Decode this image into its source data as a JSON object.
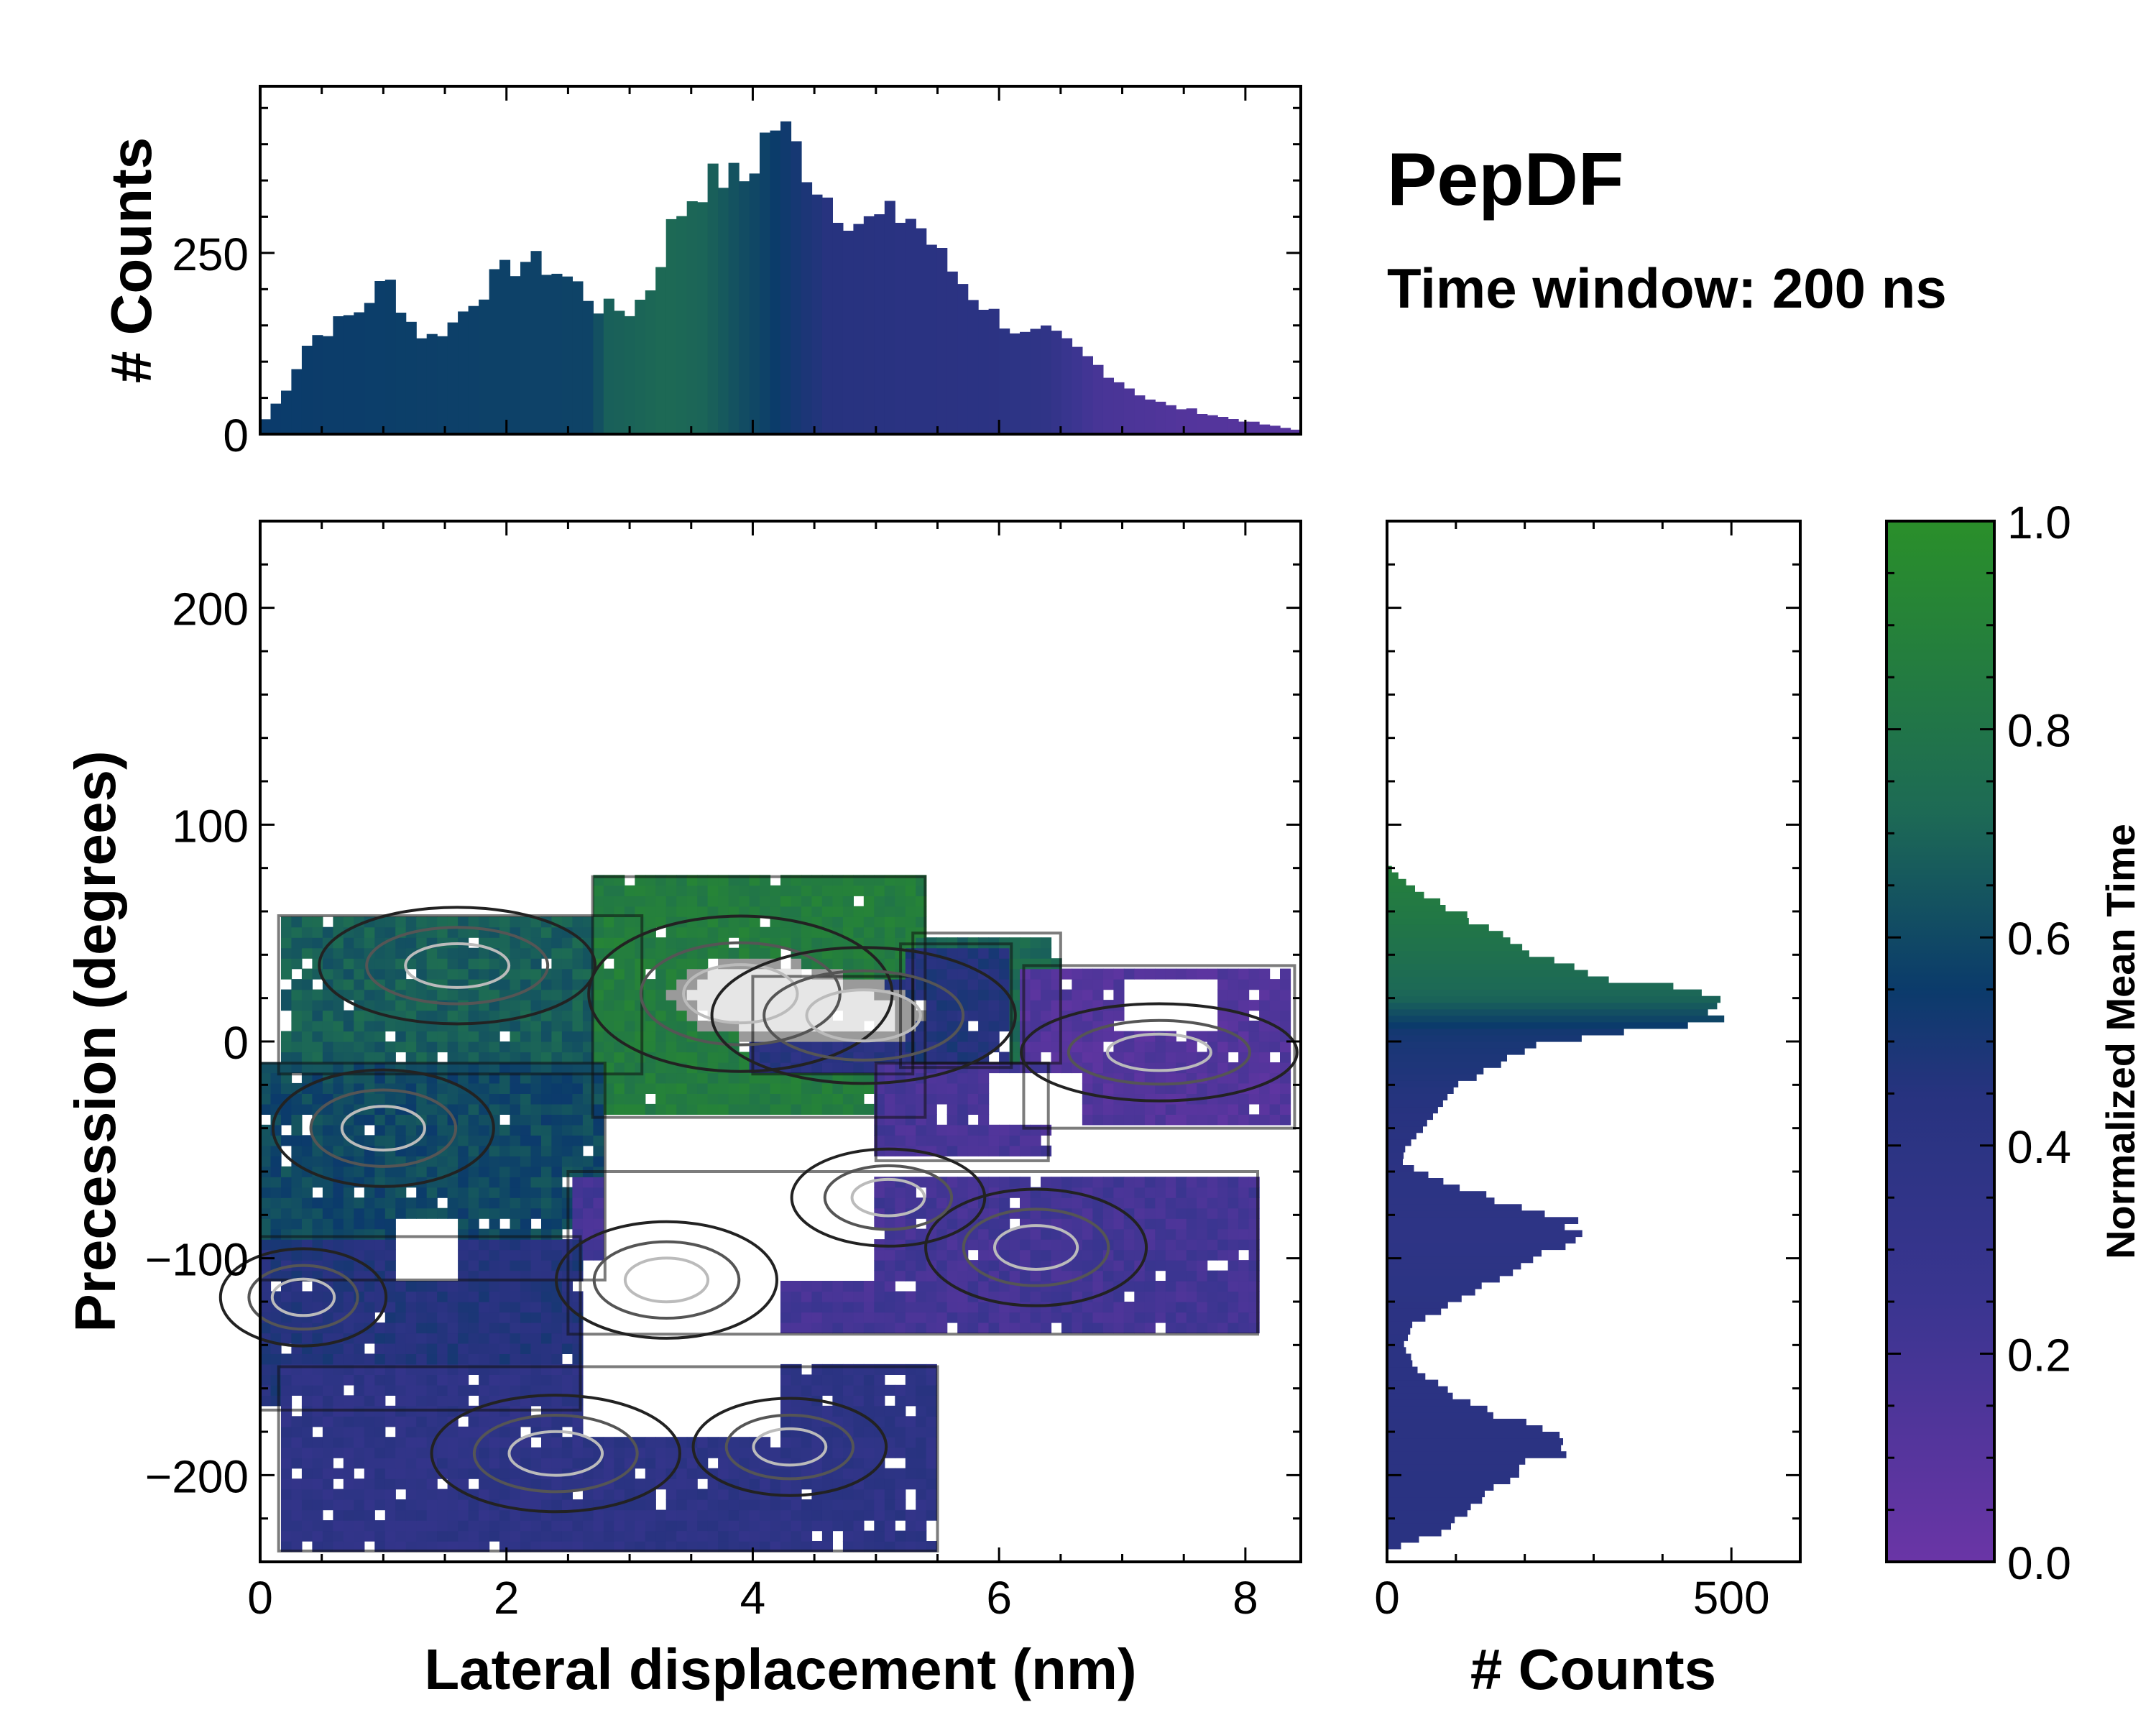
{
  "title": "PepDF",
  "subtitle": "Time window: 200 ns",
  "colors": {
    "low": "#6a35a6",
    "mid_low": "#27337f",
    "mid": "#0b3b6b",
    "mid_high": "#1d6a55",
    "high": "#2a8f2a"
  },
  "chart_data": [
    {
      "id": "top-histogram",
      "type": "bar",
      "ylabel": "# Counts",
      "xlim": [
        0,
        8.45
      ],
      "ylim": [
        0,
        480
      ],
      "yticks": [
        0,
        250
      ],
      "ytick_labels": [
        "0",
        "250"
      ],
      "bin_width": 0.0845,
      "profile": {
        "x": [
          0,
          0.2,
          0.4,
          0.6,
          0.8,
          0.95,
          1.05,
          1.2,
          1.35,
          1.55,
          1.75,
          1.95,
          2.15,
          2.35,
          2.55,
          2.75,
          3.0,
          3.15,
          3.35,
          3.55,
          3.75,
          3.95,
          4.15,
          4.3,
          4.5,
          4.7,
          4.9,
          5.1,
          5.3,
          5.55,
          5.8,
          6.0,
          6.2,
          6.4,
          6.6,
          6.8,
          7.0,
          7.2,
          7.4,
          7.6,
          7.8,
          8.0,
          8.2,
          8.45
        ],
        "y": [
          10,
          60,
          130,
          150,
          170,
          200,
          210,
          160,
          130,
          150,
          190,
          220,
          240,
          230,
          210,
          175,
          170,
          195,
          290,
          340,
          355,
          350,
          430,
          410,
          350,
          310,
          290,
          300,
          300,
          240,
          190,
          160,
          135,
          140,
          120,
          95,
          70,
          50,
          38,
          32,
          24,
          18,
          12,
          5
        ]
      },
      "time_profile": {
        "x": [
          0,
          2.7,
          2.8,
          3.3,
          3.6,
          3.9,
          4.2,
          4.6,
          5.2,
          6.0,
          6.4,
          6.6,
          6.8,
          7.5,
          8.45
        ],
        "t": [
          0.55,
          0.58,
          0.68,
          0.72,
          0.7,
          0.62,
          0.55,
          0.45,
          0.42,
          0.4,
          0.35,
          0.25,
          0.18,
          0.12,
          0.1
        ]
      }
    },
    {
      "id": "right-histogram",
      "type": "bar",
      "orientation": "horizontal",
      "xlabel": "# Counts",
      "xlim": [
        0,
        600
      ],
      "ylim": [
        -240,
        240
      ],
      "xticks": [
        0,
        500
      ],
      "xtick_labels": [
        "0",
        "500"
      ],
      "bin_width": 3,
      "profile": {
        "y": [
          -232,
          -225,
          -215,
          -205,
          -195,
          -188,
          -180,
          -170,
          -160,
          -150,
          -140,
          -130,
          -122,
          -112,
          -100,
          -90,
          -82,
          -72,
          -62,
          -55,
          -48,
          -40,
          -30,
          -20,
          -10,
          0,
          5,
          10,
          15,
          20,
          25,
          30,
          40,
          50,
          60,
          70,
          80
        ],
        "x": [
          20,
          90,
          120,
          160,
          200,
          270,
          230,
          140,
          80,
          40,
          25,
          40,
          90,
          150,
          230,
          270,
          260,
          150,
          60,
          20,
          30,
          50,
          80,
          100,
          170,
          220,
          380,
          500,
          480,
          520,
          420,
          290,
          220,
          160,
          100,
          40,
          5
        ]
      },
      "time_profile": {
        "y": [
          -240,
          -120,
          -90,
          -60,
          -30,
          0,
          5,
          10,
          20,
          35,
          50,
          80
        ],
        "t": [
          0.42,
          0.4,
          0.38,
          0.4,
          0.45,
          0.5,
          0.52,
          0.58,
          0.7,
          0.75,
          0.8,
          0.88
        ]
      }
    },
    {
      "id": "main-heatmap",
      "type": "heatmap",
      "xlabel": "Lateral displacement (nm)",
      "ylabel": "Precession (degrees)",
      "xlim": [
        0,
        8.45
      ],
      "ylim": [
        -240,
        240
      ],
      "xticks": [
        0,
        2,
        4,
        6,
        8
      ],
      "xtick_labels": [
        "0",
        "2",
        "4",
        "6",
        "8"
      ],
      "yticks": [
        -200,
        -100,
        0,
        100,
        200
      ],
      "ytick_labels": [
        "−200",
        "−100",
        "0",
        "100",
        "200"
      ],
      "cell_size": [
        0.0845,
        4.8
      ],
      "density_peaks": [
        {
          "x": 3.9,
          "y": 22,
          "sx": 0.55,
          "sy": 16,
          "w": 1.0
        },
        {
          "x": 4.9,
          "y": 12,
          "sx": 0.55,
          "sy": 14,
          "w": 0.85
        },
        {
          "x": 2.4,
          "y": -190,
          "sx": 0.45,
          "sy": 12,
          "w": 0.55
        },
        {
          "x": 0.35,
          "y": -118,
          "sx": 0.3,
          "sy": 10,
          "w": 0.4
        },
        {
          "x": 4.3,
          "y": -187,
          "sx": 0.35,
          "sy": 10,
          "w": 0.4
        },
        {
          "x": 6.3,
          "y": -95,
          "sx": 0.4,
          "sy": 12,
          "w": 0.4
        },
        {
          "x": 5.1,
          "y": -72,
          "sx": 0.35,
          "sy": 10,
          "w": 0.35
        },
        {
          "x": 1.0,
          "y": -40,
          "sx": 0.4,
          "sy": 12,
          "w": 0.3
        },
        {
          "x": 1.6,
          "y": 35,
          "sx": 0.5,
          "sy": 12,
          "w": 0.35
        },
        {
          "x": 3.3,
          "y": -110,
          "sx": 0.4,
          "sy": 12,
          "w": 0.3
        },
        {
          "x": 7.3,
          "y": -5,
          "sx": 0.5,
          "sy": 10,
          "w": 0.25
        }
      ],
      "regions": [
        {
          "x0": 0.15,
          "x1": 3.1,
          "y0": -15,
          "y1": 58,
          "t": 0.68
        },
        {
          "x0": 2.7,
          "x1": 5.4,
          "y0": -35,
          "y1": 76,
          "t": 0.86
        },
        {
          "x0": 4.0,
          "x1": 5.3,
          "y0": -15,
          "y1": 30,
          "t": 0.42
        },
        {
          "x0": 5.3,
          "x1": 6.5,
          "y0": -10,
          "y1": 50,
          "t": 0.72
        },
        {
          "x0": 5.2,
          "x1": 6.1,
          "y0": -12,
          "y1": 45,
          "t": 0.45
        },
        {
          "x0": 6.2,
          "x1": 8.4,
          "y0": -40,
          "y1": 35,
          "t": 0.12
        },
        {
          "x0": 5.0,
          "x1": 6.4,
          "y0": -55,
          "y1": -10,
          "t": 0.18
        },
        {
          "x0": 0.0,
          "x1": 2.8,
          "y0": -110,
          "y1": -10,
          "t": 0.6
        },
        {
          "x0": 2.5,
          "x1": 8.1,
          "y0": -135,
          "y1": -60,
          "t": 0.2
        },
        {
          "x0": 0.0,
          "x1": 2.6,
          "y0": -170,
          "y1": -90,
          "t": 0.45
        },
        {
          "x0": 0.15,
          "x1": 5.5,
          "y0": -235,
          "y1": -150,
          "t": 0.38
        }
      ],
      "holes": [
        {
          "x0": 2.8,
          "x1": 5.0,
          "y0": -110,
          "y1": -40
        },
        {
          "x0": 2.6,
          "x1": 4.2,
          "y0": -180,
          "y1": -100
        },
        {
          "x0": 7.0,
          "x1": 7.8,
          "y0": 5,
          "y1": 30
        },
        {
          "x0": 5.9,
          "x1": 6.7,
          "y0": -40,
          "y1": -15
        },
        {
          "x0": 1.1,
          "x1": 1.6,
          "y0": -110,
          "y1": -80
        },
        {
          "x0": 0.0,
          "x1": 0.2,
          "y0": 10,
          "y1": 70
        },
        {
          "x0": 6.4,
          "x1": 8.4,
          "y0": 40,
          "y1": 80
        }
      ]
    },
    {
      "id": "colorbar",
      "type": "colorbar",
      "label": "Normalized Mean Time",
      "ylim": [
        0,
        1
      ],
      "ticks": [
        0,
        0.2,
        0.4,
        0.6,
        0.8,
        1.0
      ],
      "tick_labels": [
        "0.0",
        "0.2",
        "0.4",
        "0.6",
        "0.8",
        "1.0"
      ]
    }
  ]
}
